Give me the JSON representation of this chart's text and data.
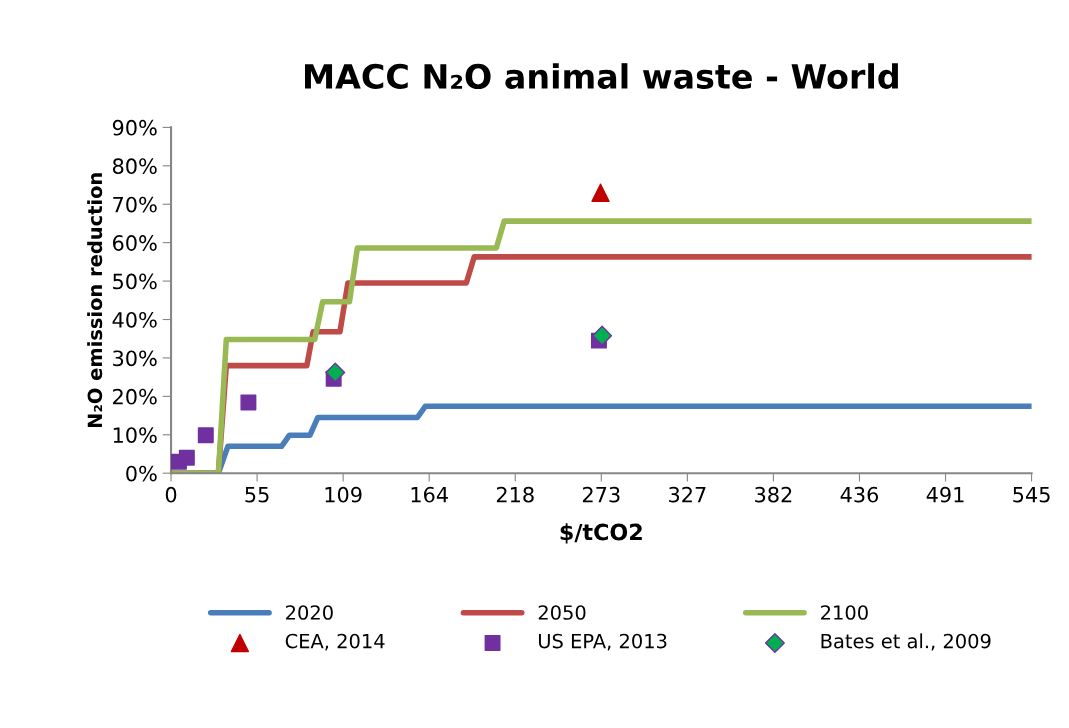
{
  "chart_data": {
    "type": "line",
    "title": "MACC N₂O animal waste - World",
    "xlabel": "$/tCO2",
    "ylabel": "N₂O emission reduction",
    "xlim": [
      0,
      545
    ],
    "xticks": [
      0,
      {
        "value": 54.5,
        "label": "55"
      },
      109,
      {
        "value": 163.5,
        "label": "164"
      },
      218,
      {
        "value": 272.5,
        "label": "273"
      },
      327,
      {
        "value": 381.5,
        "label": "382"
      },
      436,
      {
        "value": 490.5,
        "label": "491"
      },
      545
    ],
    "ylim": [
      0,
      90
    ],
    "yticks": [
      {
        "value": 0,
        "label": "0%"
      },
      {
        "value": 10,
        "label": "10%"
      },
      {
        "value": 20,
        "label": "20%"
      },
      {
        "value": 30,
        "label": "30%"
      },
      {
        "value": 40,
        "label": "40%"
      },
      {
        "value": 50,
        "label": "50%"
      },
      {
        "value": 60,
        "label": "60%"
      },
      {
        "value": 70,
        "label": "70%"
      },
      {
        "value": 80,
        "label": "80%"
      },
      {
        "value": 90,
        "label": "90%"
      }
    ],
    "grid": false,
    "legend": "bottom",
    "series": [
      {
        "name": "2020",
        "color": "#4a7ebb",
        "marker": "none",
        "x": [
          0,
          30,
          36,
          70,
          75,
          88,
          93,
          156,
          161,
          545
        ],
        "values": [
          0,
          0,
          7,
          7,
          9.9,
          9.9,
          14.5,
          14.5,
          17.4,
          17.4
        ]
      },
      {
        "name": "2050",
        "color": "#be4b48",
        "marker": "none",
        "x": [
          0,
          30,
          35,
          86,
          90,
          107,
          112,
          187,
          192,
          545
        ],
        "values": [
          0,
          0,
          28,
          28,
          36.8,
          36.8,
          49.5,
          49.5,
          56.3,
          56.3
        ]
      },
      {
        "name": "2100",
        "color": "#98b954",
        "marker": "none",
        "x": [
          0,
          30,
          35,
          91,
          96,
          113,
          118,
          206,
          211,
          545
        ],
        "values": [
          0,
          0,
          34.8,
          34.8,
          44.6,
          44.6,
          58.6,
          58.6,
          65.6,
          65.6
        ]
      },
      {
        "name": "CEA, 2014",
        "type": "scatter",
        "color": "#c00000",
        "marker": "triangle",
        "x": [
          272
        ],
        "values": [
          73
        ]
      },
      {
        "name": "US EPA, 2013",
        "type": "scatter",
        "color": "#7030a0",
        "marker": "square",
        "x": [
          5,
          10,
          22,
          49,
          103,
          271
        ],
        "values": [
          3,
          4,
          9.9,
          18.4,
          24.6,
          34.5
        ]
      },
      {
        "name": "Bates et al., 2009",
        "type": "scatter",
        "color": "#00b050",
        "marker": "diamond",
        "x": [
          104,
          273
        ],
        "values": [
          26.2,
          35.8
        ]
      }
    ]
  }
}
